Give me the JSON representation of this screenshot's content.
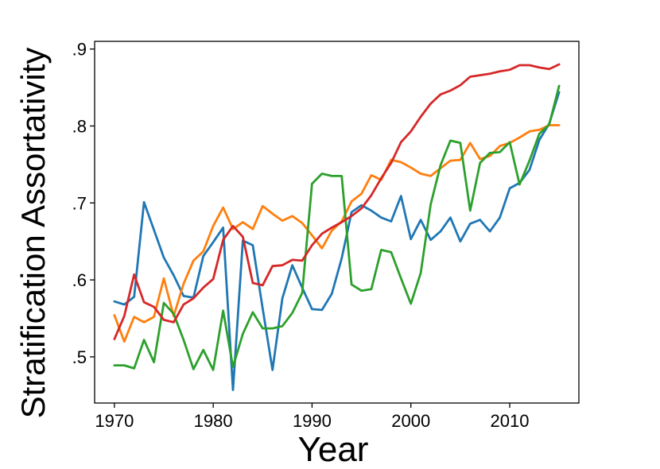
{
  "chart_data": {
    "type": "line",
    "title": "",
    "xlabel": "Year",
    "ylabel": "Stratification Assortativity",
    "xlim": [
      1968,
      2017
    ],
    "ylim": [
      0.44,
      0.91
    ],
    "xticks": [
      1970,
      1980,
      1990,
      2000,
      2010
    ],
    "xtick_labels": [
      "1970",
      "1980",
      "1990",
      "2000",
      "2010"
    ],
    "yticks": [
      0.5,
      0.6,
      0.7,
      0.8,
      0.9
    ],
    "ytick_labels": [
      ".5",
      ".6",
      ".7",
      ".8",
      ".9"
    ],
    "grid": false,
    "legend": "none",
    "x": [
      1970,
      1971,
      1972,
      1973,
      1974,
      1975,
      1976,
      1977,
      1978,
      1979,
      1980,
      1981,
      1982,
      1983,
      1984,
      1985,
      1986,
      1987,
      1988,
      1989,
      1990,
      1991,
      1992,
      1993,
      1994,
      1995,
      1996,
      1997,
      1998,
      1999,
      2000,
      2001,
      2002,
      2003,
      2004,
      2005,
      2006,
      2007,
      2008,
      2009,
      2010,
      2011,
      2012,
      2013,
      2014,
      2015
    ],
    "series": [
      {
        "color": "#1f77b4",
        "values": [
          0.572,
          0.568,
          0.578,
          0.701,
          0.665,
          0.629,
          0.606,
          0.579,
          0.577,
          0.631,
          0.649,
          0.668,
          0.457,
          0.651,
          0.645,
          0.563,
          0.483,
          0.576,
          0.619,
          0.59,
          0.562,
          0.561,
          0.582,
          0.628,
          0.688,
          0.697,
          0.69,
          0.681,
          0.676,
          0.709,
          0.653,
          0.678,
          0.652,
          0.663,
          0.681,
          0.65,
          0.673,
          0.678,
          0.663,
          0.681,
          0.719,
          0.726,
          0.743,
          0.782,
          0.803,
          0.844
        ]
      },
      {
        "color": "#ff7f0e",
        "values": [
          0.554,
          0.52,
          0.552,
          0.545,
          0.552,
          0.602,
          0.553,
          0.595,
          0.625,
          0.637,
          0.67,
          0.694,
          0.666,
          0.675,
          0.666,
          0.696,
          0.686,
          0.677,
          0.683,
          0.674,
          0.658,
          0.641,
          0.664,
          0.676,
          0.702,
          0.712,
          0.736,
          0.73,
          0.756,
          0.753,
          0.746,
          0.738,
          0.735,
          0.745,
          0.755,
          0.756,
          0.778,
          0.757,
          0.761,
          0.774,
          0.778,
          0.785,
          0.793,
          0.795,
          0.801,
          0.801
        ]
      },
      {
        "color": "#2ca02c",
        "values": [
          0.489,
          0.489,
          0.485,
          0.522,
          0.493,
          0.57,
          0.556,
          0.522,
          0.484,
          0.509,
          0.483,
          0.56,
          0.487,
          0.53,
          0.558,
          0.537,
          0.537,
          0.54,
          0.557,
          0.583,
          0.725,
          0.738,
          0.735,
          0.735,
          0.594,
          0.586,
          0.588,
          0.639,
          0.636,
          0.602,
          0.569,
          0.609,
          0.698,
          0.749,
          0.781,
          0.778,
          0.69,
          0.752,
          0.765,
          0.766,
          0.779,
          0.724,
          0.755,
          0.79,
          0.802,
          0.852
        ]
      },
      {
        "color": "#d62728",
        "values": [
          0.523,
          0.553,
          0.607,
          0.571,
          0.565,
          0.548,
          0.545,
          0.568,
          0.576,
          0.59,
          0.601,
          0.652,
          0.67,
          0.656,
          0.596,
          0.593,
          0.618,
          0.619,
          0.626,
          0.625,
          0.645,
          0.66,
          0.668,
          0.675,
          0.683,
          0.693,
          0.71,
          0.732,
          0.752,
          0.779,
          0.793,
          0.812,
          0.829,
          0.841,
          0.846,
          0.853,
          0.864,
          0.866,
          0.868,
          0.871,
          0.873,
          0.879,
          0.879,
          0.876,
          0.874,
          0.88
        ]
      }
    ]
  }
}
